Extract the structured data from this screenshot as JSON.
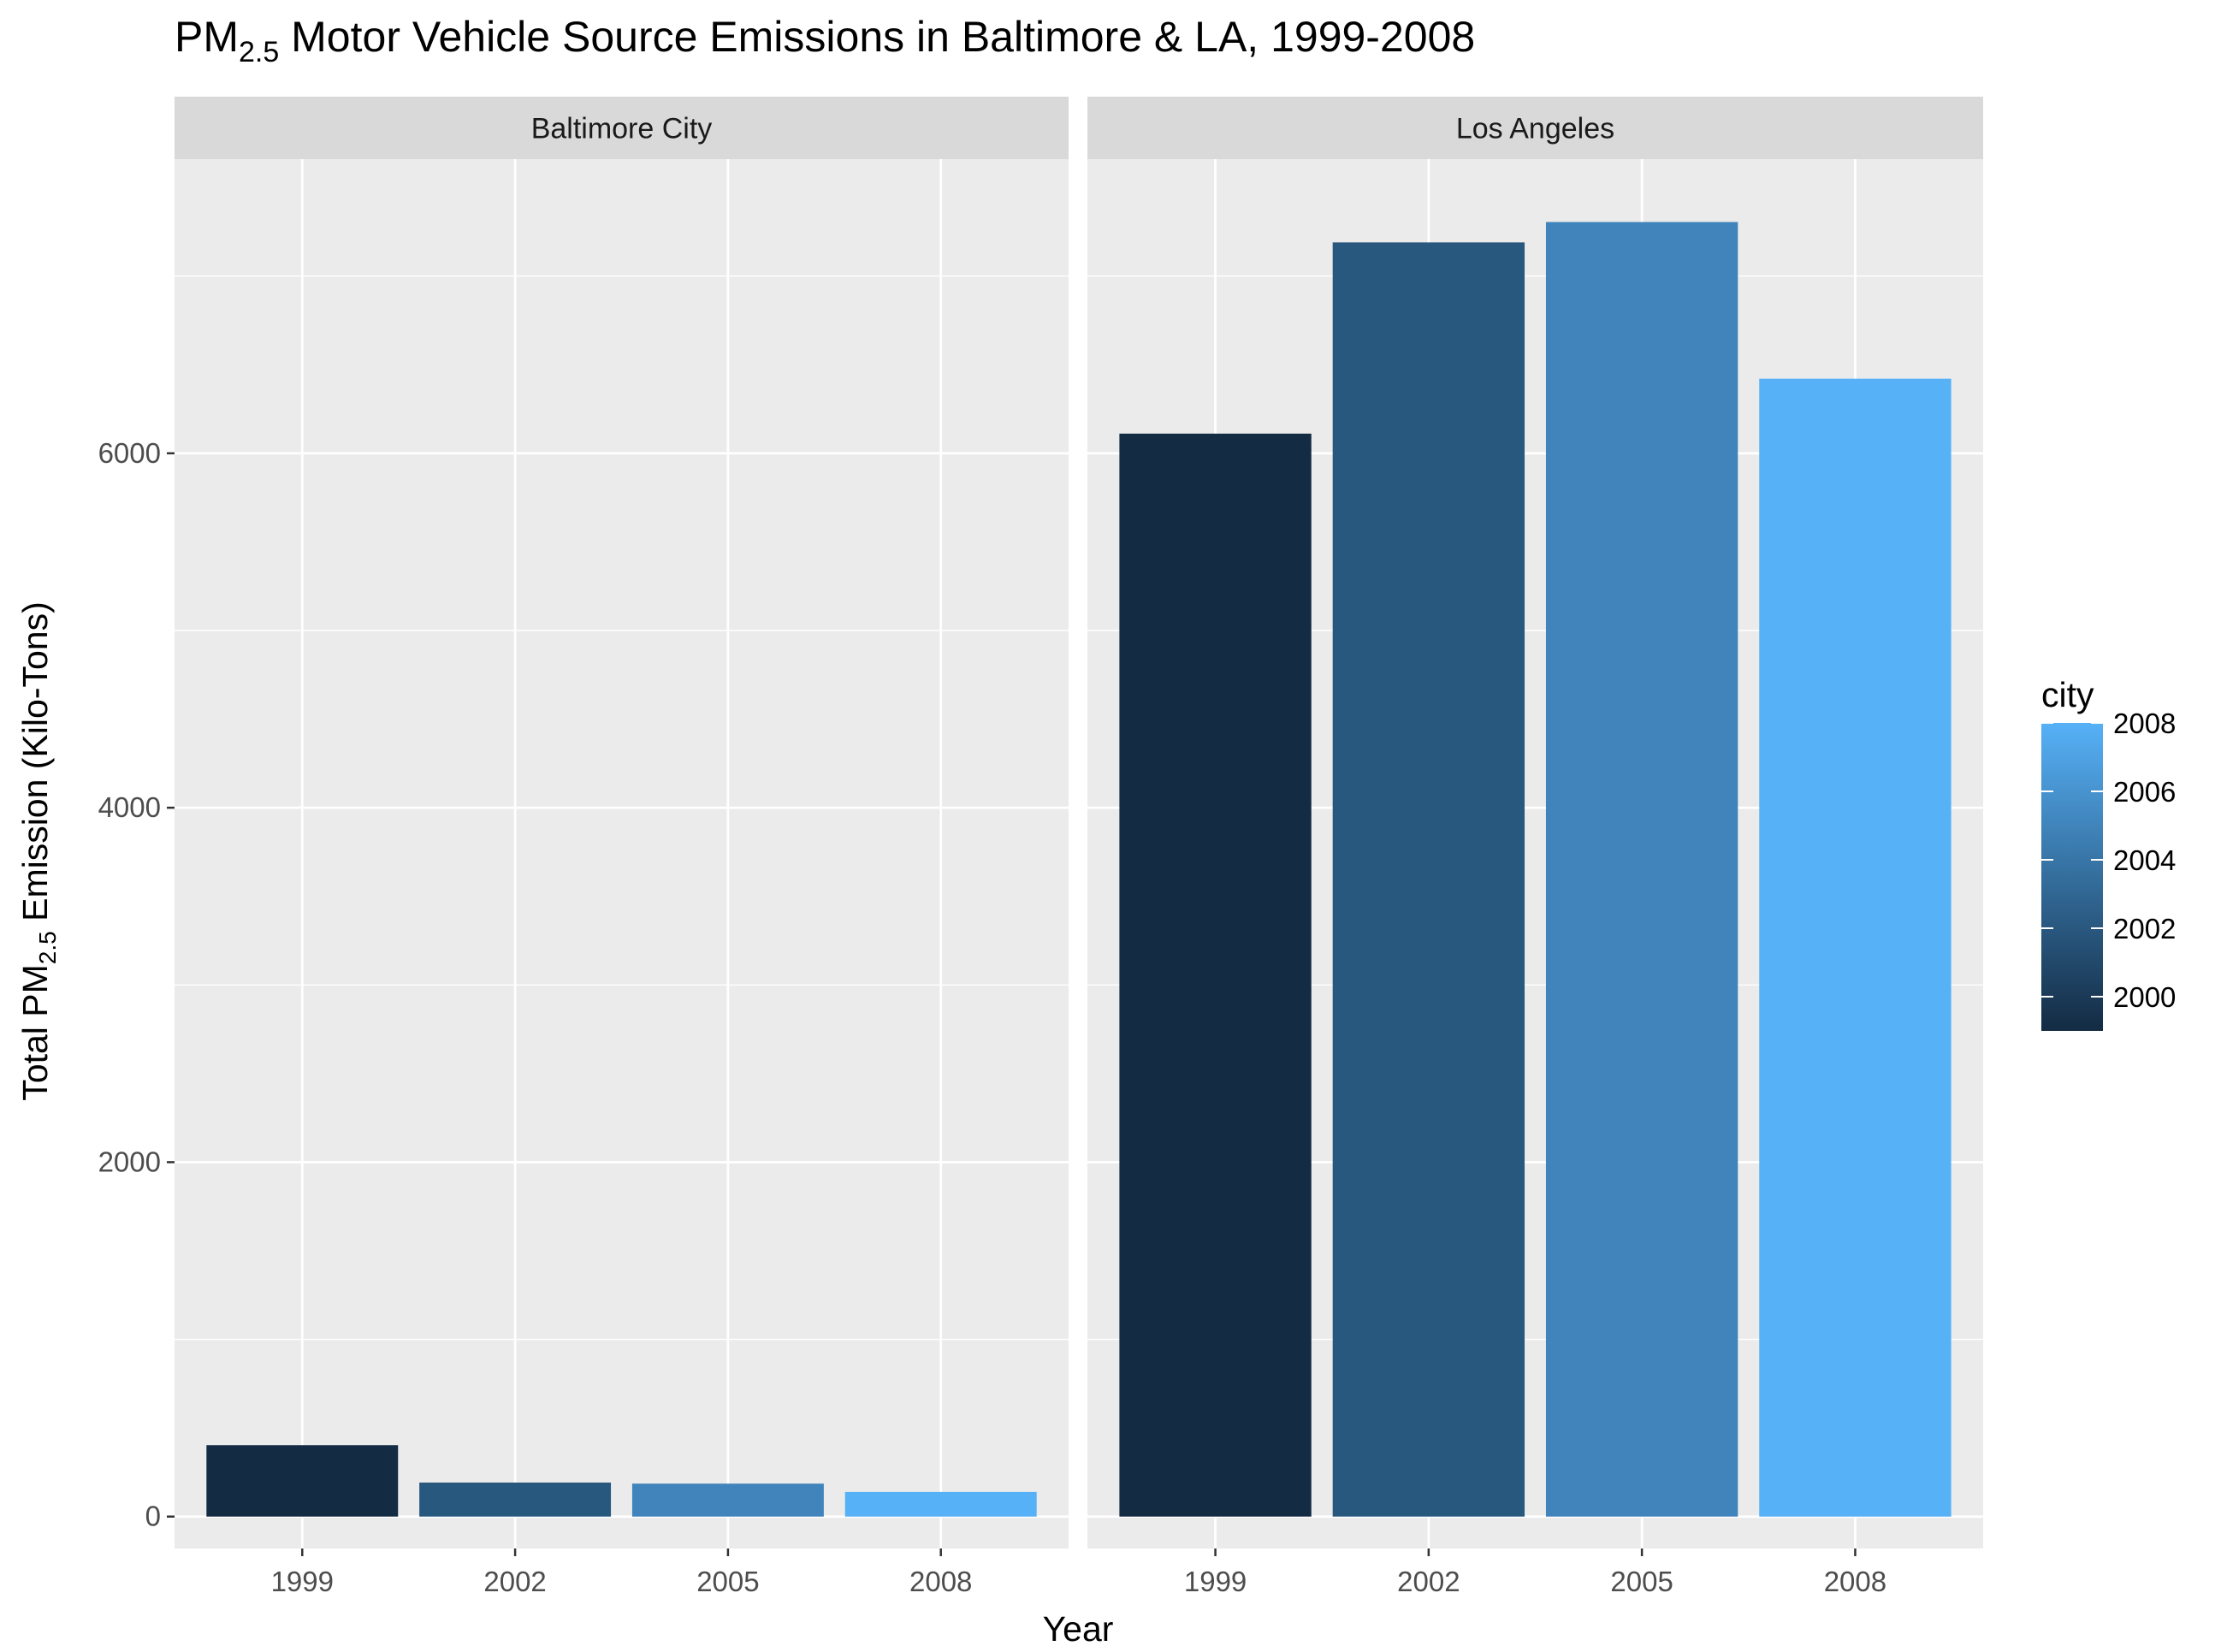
{
  "chart_data": {
    "type": "bar",
    "title": {
      "prefix": "PM",
      "subscript": "2.5",
      "suffix": " Motor Vehicle Source Emissions in Baltimore & LA, 1999-2008"
    },
    "xlabel": "Year",
    "ylabel": {
      "prefix": "Total PM",
      "subscript": "2.5",
      "suffix": " Emission (Kilo-Tons)"
    },
    "categories": [
      "1999",
      "2002",
      "2005",
      "2008"
    ],
    "panels": [
      {
        "name": "Baltimore City",
        "values": [
          403,
          192,
          186,
          139
        ]
      },
      {
        "name": "Los Angeles",
        "values": [
          6111,
          7190,
          7305,
          6421
        ]
      }
    ],
    "ylim": [
      -180,
      7660
    ],
    "y_ticks": [
      0,
      2000,
      4000,
      6000
    ],
    "grid": true,
    "legend": {
      "title": "city",
      "position": "right",
      "type": "continuous",
      "range": [
        1999,
        2008
      ],
      "breaks": [
        2000,
        2002,
        2004,
        2006,
        2008
      ],
      "low_color": "#132b43",
      "high_color": "#56b1f7"
    },
    "colors": {
      "panel_bg": "#ebebeb",
      "strip_bg": "#d9d9d9",
      "grid": "#ffffff"
    }
  }
}
